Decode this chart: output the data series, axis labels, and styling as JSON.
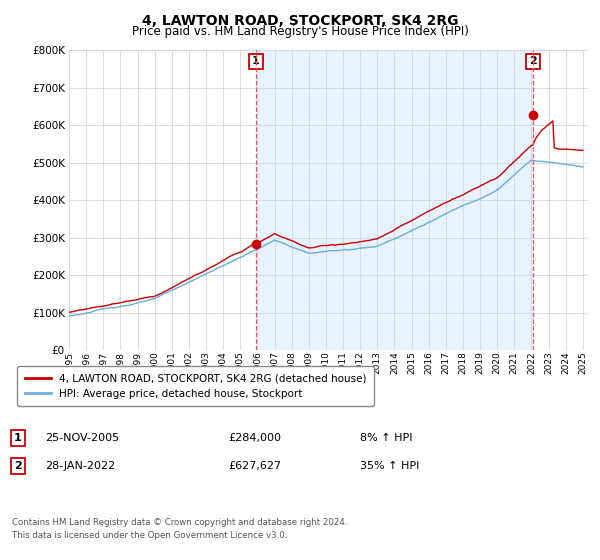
{
  "title": "4, LAWTON ROAD, STOCKPORT, SK4 2RG",
  "subtitle": "Price paid vs. HM Land Registry's House Price Index (HPI)",
  "ylim": [
    0,
    800000
  ],
  "yticks": [
    0,
    100000,
    200000,
    300000,
    400000,
    500000,
    600000,
    700000,
    800000
  ],
  "sale1_price": 284000,
  "sale1_label": "1",
  "sale1_date_str": "25-NOV-2005",
  "sale1_amount": "£284,000",
  "sale1_hpi": "8% ↑ HPI",
  "sale2_price": 627627,
  "sale2_label": "2",
  "sale2_date_str": "28-JAN-2022",
  "sale2_amount": "£627,627",
  "sale2_hpi": "35% ↑ HPI",
  "hpi_color": "#6baed6",
  "price_color": "#cc0000",
  "shade_color": "#ddeeff",
  "dashed_color": "#ff6666",
  "bg_color": "#ffffff",
  "grid_color": "#d0d8e0",
  "legend_label_price": "4, LAWTON ROAD, STOCKPORT, SK4 2RG (detached house)",
  "legend_label_hpi": "HPI: Average price, detached house, Stockport",
  "footer1": "Contains HM Land Registry data © Crown copyright and database right 2024.",
  "footer2": "This data is licensed under the Open Government Licence v3.0."
}
